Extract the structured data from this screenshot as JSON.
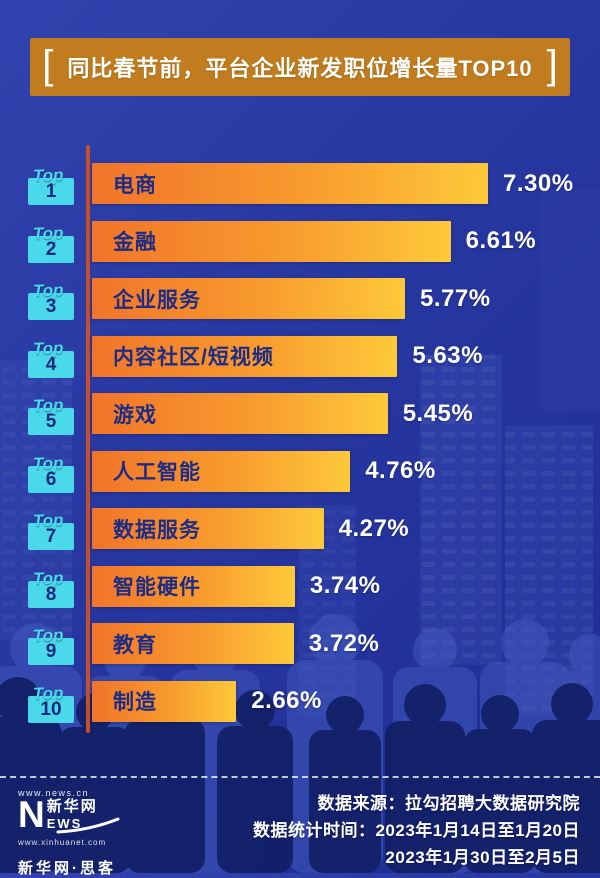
{
  "title": {
    "bracket_left": "[",
    "text": "同比春节前，平台企业新发职位增长量TOP10",
    "bracket_right": "]"
  },
  "chart_data": {
    "type": "bar",
    "orientation": "horizontal",
    "title": "同比春节前，平台企业新发职位增长量TOP10",
    "rank_prefix": "Top",
    "ranks": [
      "1",
      "2",
      "3",
      "4",
      "5",
      "6",
      "7",
      "8",
      "9",
      "10"
    ],
    "categories": [
      "电商",
      "金融",
      "企业服务",
      "内容社区/短视频",
      "游戏",
      "人工智能",
      "数据服务",
      "智能硬件",
      "教育",
      "制造"
    ],
    "values": [
      7.3,
      6.61,
      5.77,
      5.63,
      5.45,
      4.76,
      4.27,
      3.74,
      3.72,
      2.66
    ],
    "value_labels": [
      "7.30%",
      "6.61%",
      "5.77%",
      "5.63%",
      "5.45%",
      "4.76%",
      "4.27%",
      "3.74%",
      "3.72%",
      "2.66%"
    ],
    "xlim": [
      0,
      7.8
    ],
    "grid": false,
    "legend": "none"
  },
  "footer": {
    "source": "数据来源：拉勾招聘大数据研究院",
    "period_line1": "数据统计时间：2023年1月14日至1月20日",
    "period_line2": "2023年1月30日至2月5日"
  },
  "logo": {
    "url_top": "www.news.cn",
    "n": "N",
    "cn_name": "新华网",
    "ews": "EWS",
    "url_bottom": "www.xinhuanet.com",
    "tagline": "新华网·思客"
  },
  "colors": {
    "background": "#2737a0",
    "title_box": "#c07c1e",
    "bar_gradient_start": "#f1742a",
    "bar_gradient_end": "#fdc93a",
    "bar_label": "#1d2d85",
    "value_text": "#ffffff",
    "badge": "#49d9ea",
    "badge_number": "#16297d",
    "axis_line": "#c44f2c"
  }
}
